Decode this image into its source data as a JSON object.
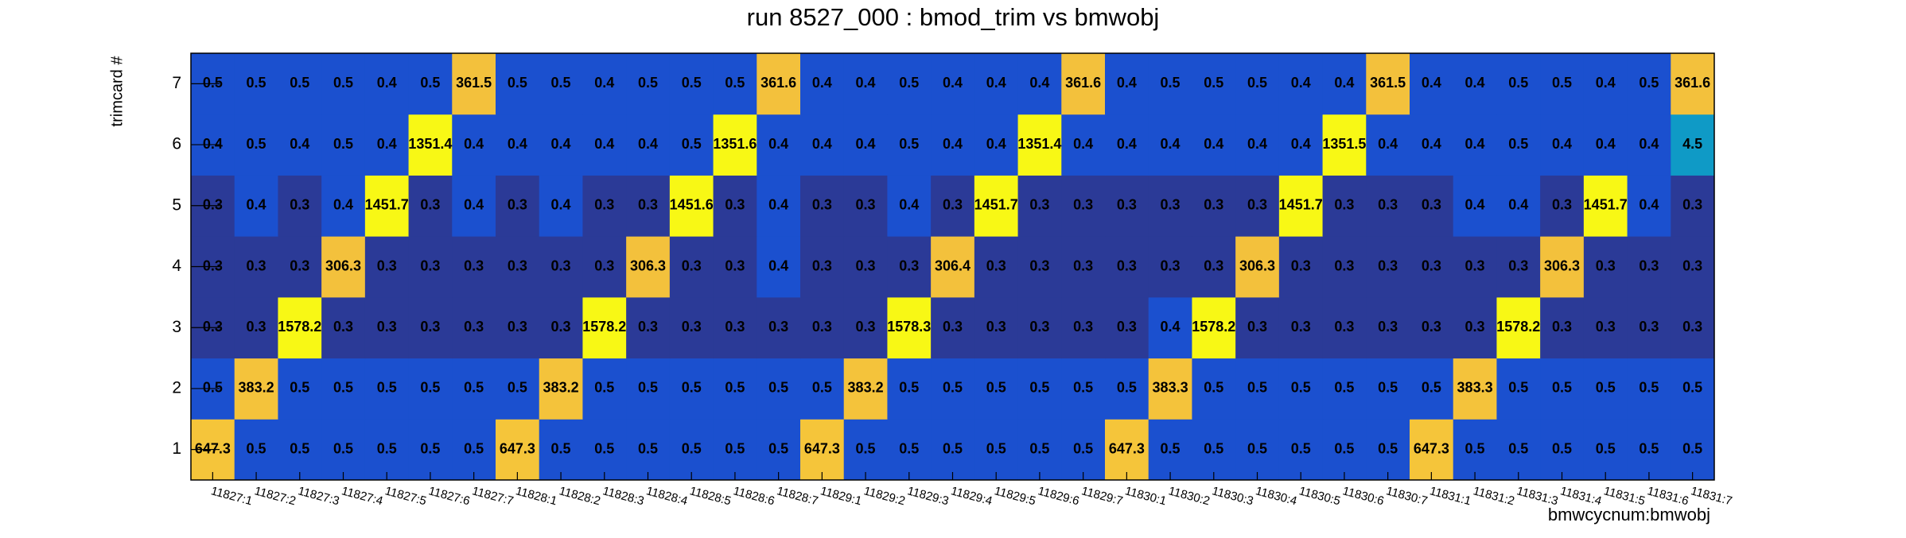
{
  "chart_data": {
    "type": "heatmap",
    "title": "run 8527_000 : bmod_trim vs bmwobj",
    "x_label": "bmwcycnum:bmwobj",
    "y_label": "trimcard #",
    "x_categories": [
      "11827:1",
      "11827:2",
      "11827:3",
      "11827:4",
      "11827:5",
      "11827:6",
      "11827:7",
      "11828:1",
      "11828:2",
      "11828:3",
      "11828:4",
      "11828:5",
      "11828:6",
      "11828:7",
      "11829:1",
      "11829:2",
      "11829:3",
      "11829:4",
      "11829:5",
      "11829:6",
      "11829:7",
      "11830:1",
      "11830:2",
      "11830:3",
      "11830:4",
      "11830:5",
      "11830:6",
      "11830:7",
      "11831:1",
      "11831:2",
      "11831:3",
      "11831:4",
      "11831:5",
      "11831:6",
      "11831:7"
    ],
    "y_categories": [
      "1",
      "2",
      "3",
      "4",
      "5",
      "6",
      "7"
    ],
    "values": [
      [
        647.3,
        0.5,
        0.5,
        0.5,
        0.5,
        0.5,
        0.5,
        647.3,
        0.5,
        0.5,
        0.5,
        0.5,
        0.5,
        0.5,
        647.3,
        0.5,
        0.5,
        0.5,
        0.5,
        0.5,
        0.5,
        647.3,
        0.5,
        0.5,
        0.5,
        0.5,
        0.5,
        0.5,
        647.3,
        0.5,
        0.5,
        0.5,
        0.5,
        0.5,
        0.5
      ],
      [
        0.5,
        383.2,
        0.5,
        0.5,
        0.5,
        0.5,
        0.5,
        0.5,
        383.2,
        0.5,
        0.5,
        0.5,
        0.5,
        0.5,
        0.5,
        383.2,
        0.5,
        0.5,
        0.5,
        0.5,
        0.5,
        0.5,
        383.3,
        0.5,
        0.5,
        0.5,
        0.5,
        0.5,
        0.5,
        383.3,
        0.5,
        0.5,
        0.5,
        0.5,
        0.5
      ],
      [
        0.3,
        0.3,
        1578.2,
        0.3,
        0.3,
        0.3,
        0.3,
        0.3,
        0.3,
        1578.2,
        0.3,
        0.3,
        0.3,
        0.3,
        0.3,
        0.3,
        1578.3,
        0.3,
        0.3,
        0.3,
        0.3,
        0.3,
        0.4,
        1578.2,
        0.3,
        0.3,
        0.3,
        0.3,
        0.3,
        0.3,
        1578.2,
        0.3,
        0.3,
        0.3,
        0.3
      ],
      [
        0.3,
        0.3,
        0.3,
        306.3,
        0.3,
        0.3,
        0.3,
        0.3,
        0.3,
        0.3,
        306.3,
        0.3,
        0.3,
        0.4,
        0.3,
        0.3,
        0.3,
        306.4,
        0.3,
        0.3,
        0.3,
        0.3,
        0.3,
        0.3,
        306.3,
        0.3,
        0.3,
        0.3,
        0.3,
        0.3,
        0.3,
        306.3,
        0.3,
        0.3,
        0.3
      ],
      [
        0.3,
        0.4,
        0.3,
        0.4,
        1451.7,
        0.3,
        0.4,
        0.3,
        0.4,
        0.3,
        0.3,
        1451.6,
        0.3,
        0.4,
        0.3,
        0.3,
        0.4,
        0.3,
        1451.7,
        0.3,
        0.3,
        0.3,
        0.3,
        0.3,
        0.3,
        1451.7,
        0.3,
        0.3,
        0.3,
        0.4,
        0.4,
        0.3,
        1451.7,
        0.4,
        0.3
      ],
      [
        0.4,
        0.5,
        0.4,
        0.5,
        0.4,
        1351.4,
        0.4,
        0.4,
        0.4,
        0.4,
        0.4,
        0.5,
        1351.6,
        0.4,
        0.4,
        0.4,
        0.5,
        0.4,
        0.4,
        1351.4,
        0.4,
        0.4,
        0.4,
        0.4,
        0.4,
        0.4,
        1351.5,
        0.4,
        0.4,
        0.4,
        0.5,
        0.4,
        0.4,
        0.4,
        4.5
      ],
      [
        0.5,
        0.5,
        0.5,
        0.5,
        0.4,
        0.5,
        361.5,
        0.5,
        0.5,
        0.4,
        0.5,
        0.5,
        0.5,
        361.6,
        0.4,
        0.4,
        0.5,
        0.4,
        0.4,
        0.4,
        361.6,
        0.4,
        0.5,
        0.5,
        0.5,
        0.4,
        0.4,
        361.5,
        0.4,
        0.4,
        0.5,
        0.5,
        0.4,
        0.5,
        361.6
      ]
    ],
    "zlog": true,
    "palette": [
      "#2b3a97",
      "#1b50cf",
      "#1958d4",
      "#1660d6",
      "#1268d6",
      "#0e70d4",
      "#0c78d2",
      "#0a80ce",
      "#0a88ca",
      "#0f9ac6",
      "#16a2bc",
      "#20a9b0",
      "#2daea4",
      "#3cb298",
      "#4db68a",
      "#60b87c",
      "#75b96e",
      "#8ab960",
      "#9fb852",
      "#b3b746",
      "#c5b63c",
      "#d5b838",
      "#e3bb38",
      "#ecbf3a",
      "#f3c13c",
      "#f4c33b",
      "#f5c53a",
      "#f6df28",
      "#f7ec1e",
      "#f8f815"
    ]
  }
}
